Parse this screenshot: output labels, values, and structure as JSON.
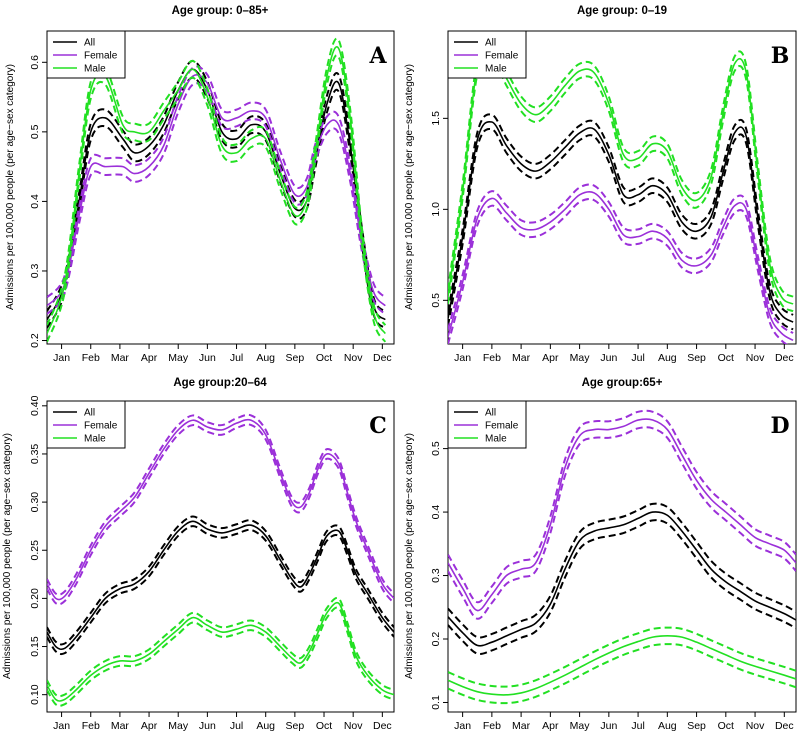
{
  "colors": {
    "All": "#000000",
    "Female": "#9B30D9",
    "Male": "#22E022"
  },
  "chart_data": [
    {
      "type": "line",
      "tag": "A",
      "title": "Age group: 0–85+",
      "xlabel": "",
      "ylabel": "Admissions per 100,000 people (per age−sex category)",
      "x_ticks": [
        "Jan",
        "Feb",
        "Mar",
        "Apr",
        "May",
        "Jun",
        "Jul",
        "Aug",
        "Sep",
        "Oct",
        "Nov",
        "Dec"
      ],
      "y_ticks": [
        "0.2",
        "0.3",
        "0.4",
        "0.5",
        "0.6"
      ],
      "y_tick_values": [
        0.2,
        0.3,
        0.4,
        0.5,
        0.6
      ],
      "ylim": [
        0.195,
        0.645
      ],
      "x": [
        0,
        0.6,
        1.1,
        1.5,
        2.0,
        2.6,
        3.0,
        3.5,
        4.0,
        4.5,
        5.0,
        5.5,
        6.0,
        6.5,
        7.0,
        7.5,
        8.0,
        8.5,
        8.9,
        9.2,
        9.6,
        10.0,
        10.4,
        10.8,
        11.2,
        11.6
      ],
      "band": 0.012,
      "legend": [
        "All",
        "Female",
        "Male"
      ],
      "legend_position": "top-left",
      "series": [
        {
          "name": "All",
          "values": [
            0.23,
            0.28,
            0.4,
            0.5,
            0.52,
            0.49,
            0.47,
            0.48,
            0.51,
            0.56,
            0.59,
            0.56,
            0.5,
            0.49,
            0.51,
            0.5,
            0.44,
            0.39,
            0.4,
            0.46,
            0.54,
            0.57,
            0.48,
            0.35,
            0.25,
            0.23
          ]
        },
        {
          "name": "Female",
          "values": [
            0.25,
            0.28,
            0.38,
            0.45,
            0.45,
            0.45,
            0.44,
            0.45,
            0.48,
            0.54,
            0.58,
            0.57,
            0.52,
            0.52,
            0.53,
            0.52,
            0.46,
            0.41,
            0.42,
            0.47,
            0.51,
            0.51,
            0.44,
            0.34,
            0.27,
            0.25
          ]
        },
        {
          "name": "Male",
          "values": [
            0.21,
            0.28,
            0.44,
            0.56,
            0.58,
            0.51,
            0.5,
            0.5,
            0.53,
            0.56,
            0.59,
            0.55,
            0.48,
            0.47,
            0.49,
            0.49,
            0.43,
            0.38,
            0.4,
            0.47,
            0.58,
            0.62,
            0.52,
            0.35,
            0.24,
            0.21
          ]
        }
      ]
    },
    {
      "type": "line",
      "tag": "B",
      "title": "Age group: 0–19",
      "xlabel": "",
      "ylabel": "Admissions per 100,000 people (per age−sex category)",
      "x_ticks": [
        "Jan",
        "Feb",
        "Mar",
        "Apr",
        "May",
        "Jun",
        "Jul",
        "Aug",
        "Sep",
        "Oct",
        "Nov",
        "Dec"
      ],
      "y_ticks": [
        "0.5",
        "1.0",
        "1.5"
      ],
      "y_tick_values": [
        0.5,
        1.0,
        1.5
      ],
      "ylim": [
        0.26,
        1.98
      ],
      "x": [
        0,
        0.5,
        1.0,
        1.5,
        2.0,
        2.5,
        3.0,
        3.5,
        4.0,
        4.5,
        5.0,
        5.5,
        6.0,
        6.5,
        7.0,
        7.5,
        8.0,
        8.5,
        9.0,
        9.4,
        9.8,
        10.2,
        10.6,
        11.0,
        11.4,
        11.8
      ],
      "band": 0.04,
      "legend": [
        "All",
        "Female",
        "Male"
      ],
      "legend_position": "top-left",
      "series": [
        {
          "name": "All",
          "values": [
            0.4,
            0.85,
            1.38,
            1.48,
            1.35,
            1.25,
            1.21,
            1.26,
            1.34,
            1.42,
            1.44,
            1.3,
            1.08,
            1.08,
            1.13,
            1.08,
            0.93,
            0.88,
            0.96,
            1.2,
            1.42,
            1.4,
            0.95,
            0.55,
            0.42,
            0.38
          ]
        },
        {
          "name": "Male",
          "values": [
            0.52,
            1.1,
            1.78,
            1.87,
            1.72,
            1.58,
            1.52,
            1.58,
            1.68,
            1.76,
            1.75,
            1.58,
            1.3,
            1.28,
            1.36,
            1.32,
            1.12,
            1.05,
            1.18,
            1.52,
            1.8,
            1.75,
            1.2,
            0.7,
            0.52,
            0.48
          ]
        },
        {
          "name": "Female",
          "values": [
            0.3,
            0.6,
            0.95,
            1.06,
            0.98,
            0.9,
            0.89,
            0.93,
            1.0,
            1.08,
            1.09,
            1.0,
            0.86,
            0.85,
            0.88,
            0.84,
            0.72,
            0.69,
            0.75,
            0.9,
            1.02,
            1.0,
            0.7,
            0.42,
            0.32,
            0.28
          ]
        }
      ]
    },
    {
      "type": "line",
      "tag": "C",
      "title": "Age group:20–64",
      "xlabel": "",
      "ylabel": "Admissions per 100,000 people (per age−sex category)",
      "x_ticks": [
        "Jan",
        "Feb",
        "Mar",
        "Apr",
        "May",
        "Jun",
        "Jul",
        "Aug",
        "Sep",
        "Oct",
        "Nov",
        "Dec"
      ],
      "y_ticks": [
        "0.10",
        "0.15",
        "0.20",
        "0.25",
        "0.30",
        "0.35",
        "0.40"
      ],
      "y_tick_values": [
        0.1,
        0.15,
        0.2,
        0.25,
        0.3,
        0.35,
        0.4
      ],
      "ylim": [
        0.082,
        0.405
      ],
      "x": [
        0,
        0.3,
        0.6,
        1.0,
        1.5,
        2.0,
        2.5,
        3.0,
        3.5,
        4.0,
        4.5,
        5.0,
        5.5,
        6.0,
        6.5,
        7.0,
        7.5,
        8.0,
        8.4,
        8.7,
        9.0,
        9.3,
        9.6,
        10.0,
        10.3,
        10.6,
        11.0,
        11.5,
        11.9
      ],
      "band": 0.005,
      "legend": [
        "All",
        "Female",
        "Male"
      ],
      "legend_position": "top-left",
      "series": [
        {
          "name": "Female",
          "values": [
            0.215,
            0.2,
            0.202,
            0.22,
            0.25,
            0.275,
            0.29,
            0.305,
            0.33,
            0.355,
            0.375,
            0.385,
            0.378,
            0.375,
            0.382,
            0.385,
            0.37,
            0.33,
            0.3,
            0.295,
            0.31,
            0.335,
            0.35,
            0.34,
            0.31,
            0.28,
            0.25,
            0.215,
            0.2
          ]
        },
        {
          "name": "All",
          "values": [
            0.165,
            0.15,
            0.148,
            0.16,
            0.18,
            0.2,
            0.21,
            0.215,
            0.228,
            0.25,
            0.27,
            0.28,
            0.272,
            0.268,
            0.272,
            0.276,
            0.265,
            0.24,
            0.22,
            0.212,
            0.225,
            0.245,
            0.265,
            0.27,
            0.25,
            0.225,
            0.205,
            0.18,
            0.165
          ]
        },
        {
          "name": "Male",
          "values": [
            0.11,
            0.095,
            0.095,
            0.105,
            0.12,
            0.13,
            0.135,
            0.135,
            0.142,
            0.155,
            0.168,
            0.18,
            0.172,
            0.165,
            0.168,
            0.172,
            0.165,
            0.15,
            0.138,
            0.133,
            0.145,
            0.165,
            0.185,
            0.195,
            0.17,
            0.14,
            0.12,
            0.105,
            0.1
          ]
        }
      ]
    },
    {
      "type": "line",
      "tag": "D",
      "title": "Age group:65+",
      "xlabel": "",
      "ylabel": "Admissions per 100,000 people (per age−sex category)",
      "x_ticks": [
        "Jan",
        "Feb",
        "Mar",
        "Apr",
        "May",
        "Jun",
        "Jul",
        "Aug",
        "Sep",
        "Oct",
        "Nov",
        "Dec"
      ],
      "y_ticks": [
        "0.1",
        "0.2",
        "0.3",
        "0.4",
        "0.5"
      ],
      "y_tick_values": [
        0.1,
        0.2,
        0.3,
        0.4,
        0.5
      ],
      "ylim": [
        0.085,
        0.575
      ],
      "x": [
        0,
        0.5,
        1.0,
        1.5,
        2.0,
        2.5,
        3.0,
        3.5,
        4.0,
        4.5,
        5.0,
        5.5,
        6.0,
        6.5,
        7.0,
        7.5,
        8.0,
        8.5,
        9.0,
        9.5,
        10.0,
        10.5,
        11.0,
        11.5,
        11.9
      ],
      "band": 0.013,
      "legend": [
        "All",
        "Female",
        "Male"
      ],
      "legend_position": "top-left",
      "series": [
        {
          "name": "Female",
          "values": [
            0.32,
            0.28,
            0.245,
            0.27,
            0.3,
            0.31,
            0.32,
            0.38,
            0.47,
            0.52,
            0.53,
            0.53,
            0.535,
            0.545,
            0.545,
            0.53,
            0.49,
            0.45,
            0.42,
            0.4,
            0.38,
            0.36,
            0.35,
            0.34,
            0.32
          ]
        },
        {
          "name": "All",
          "values": [
            0.235,
            0.21,
            0.19,
            0.195,
            0.205,
            0.215,
            0.225,
            0.255,
            0.31,
            0.355,
            0.37,
            0.375,
            0.38,
            0.39,
            0.4,
            0.395,
            0.37,
            0.34,
            0.31,
            0.29,
            0.275,
            0.26,
            0.25,
            0.24,
            0.23
          ]
        },
        {
          "name": "Male",
          "values": [
            0.135,
            0.125,
            0.117,
            0.113,
            0.112,
            0.115,
            0.122,
            0.132,
            0.143,
            0.155,
            0.167,
            0.178,
            0.188,
            0.196,
            0.203,
            0.205,
            0.203,
            0.195,
            0.185,
            0.175,
            0.165,
            0.157,
            0.15,
            0.143,
            0.137
          ]
        }
      ]
    }
  ]
}
